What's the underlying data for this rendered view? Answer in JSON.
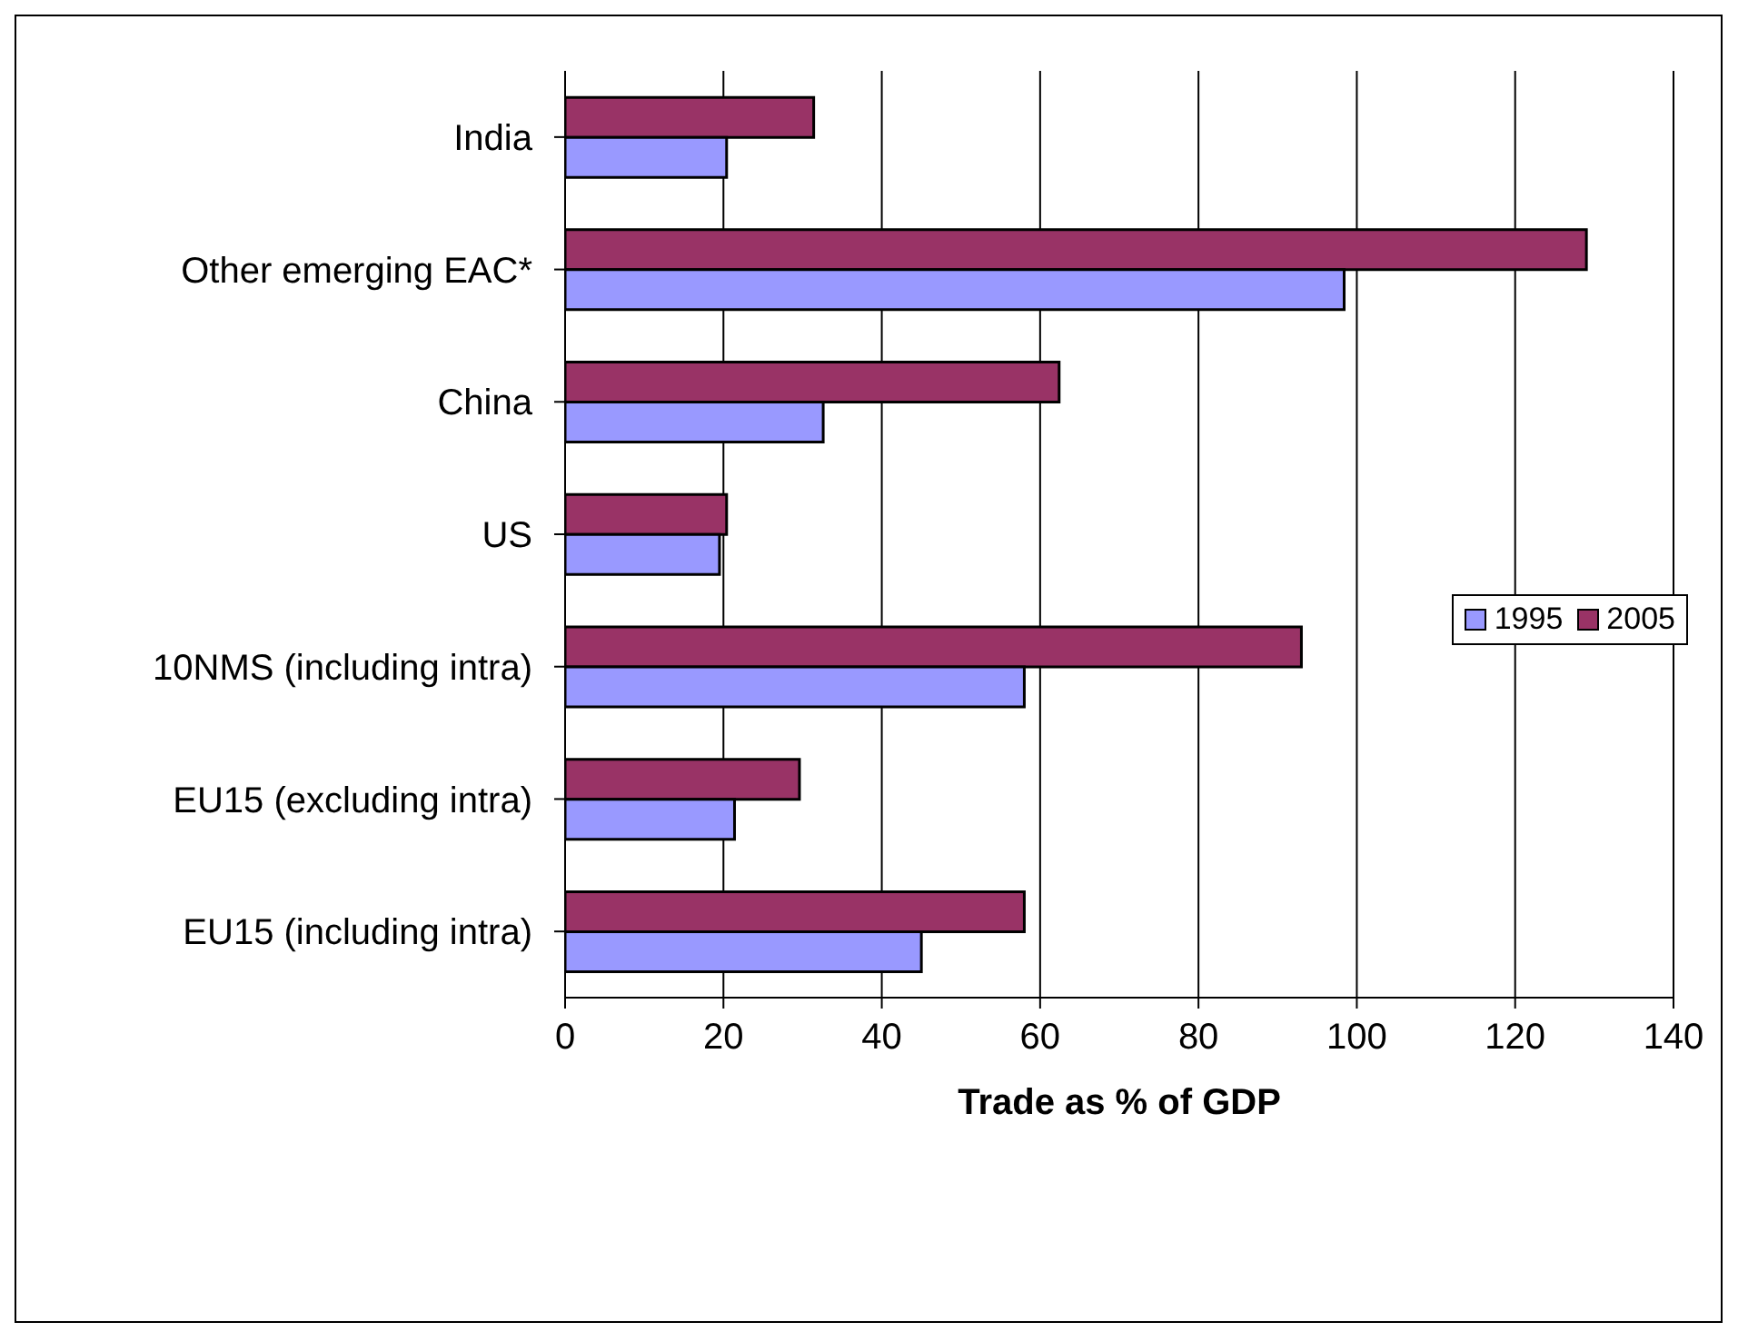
{
  "chart_data": {
    "type": "bar",
    "orientation": "horizontal",
    "xlabel": "Trade as % of GDP",
    "categories": [
      "India",
      "Other emerging EAC*",
      "China",
      "US",
      "10NMS (including intra)",
      "EU15 (excluding intra)",
      "EU15 (including intra)"
    ],
    "series": [
      {
        "name": "1995",
        "color": "#9999ff",
        "values": [
          20.4,
          98.4,
          32.6,
          19.5,
          58,
          21.4,
          45
        ]
      },
      {
        "name": "2005",
        "color": "#993366",
        "values": [
          31.4,
          129,
          62.4,
          20.4,
          93,
          29.6,
          58
        ]
      }
    ],
    "xlim": [
      0,
      140
    ],
    "xticks": [
      0,
      20,
      40,
      60,
      80,
      100,
      120,
      140
    ],
    "grid": "x",
    "legend": "right"
  }
}
